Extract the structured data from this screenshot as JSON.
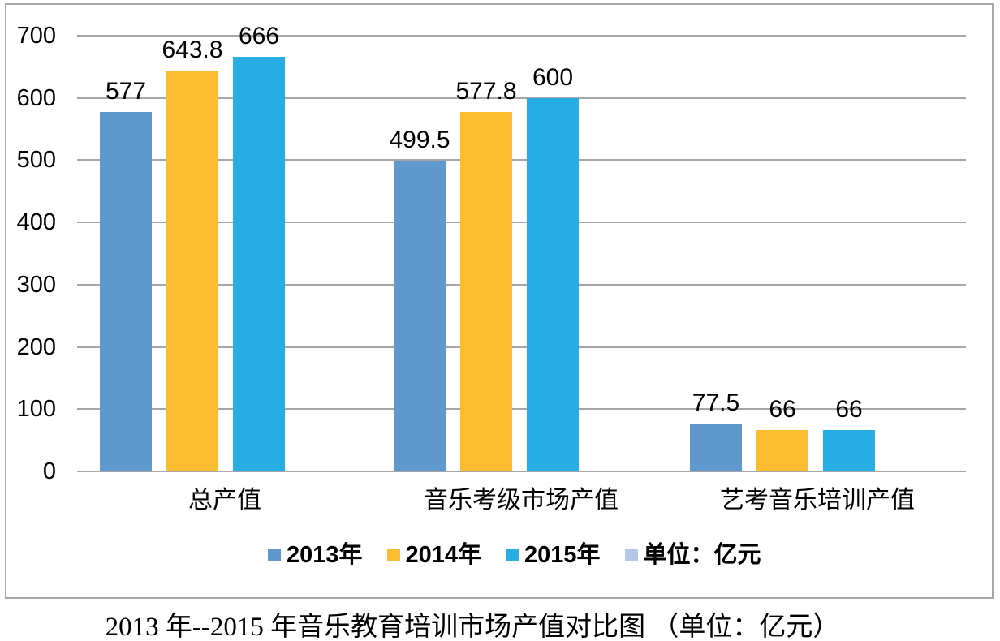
{
  "chart_data": {
    "type": "bar",
    "title": "2013 年--2015 年音乐教育培训市场产值对比图 （单位：亿元）",
    "categories": [
      "总产值",
      "音乐考级市场产值",
      "艺考音乐培训产值"
    ],
    "series": [
      {
        "name": "2013年",
        "color": "#6099CD",
        "values": [
          577,
          499.5,
          77.5
        ]
      },
      {
        "name": "2014年",
        "color": "#FBBC2F",
        "values": [
          643.8,
          577.8,
          66
        ]
      },
      {
        "name": "2015年",
        "color": "#27ACE3",
        "values": [
          666,
          600,
          66
        ]
      }
    ],
    "legend": [
      {
        "label": "2013年",
        "color": "#6099CD"
      },
      {
        "label": "2014年",
        "color": "#FBBC2F"
      },
      {
        "label": "2015年",
        "color": "#27ACE3"
      },
      {
        "label": "单位：亿元",
        "color": "#B4C7E7"
      }
    ],
    "y_ticks": [
      0,
      100,
      200,
      300,
      400,
      500,
      600,
      700
    ],
    "ylim": [
      0,
      700
    ],
    "grid": true,
    "legend_position": "bottom",
    "value_labels": true
  },
  "frame": {
    "border_color": "#A6A6A6",
    "gridline_color": "#A6A6A6",
    "text_color": "#000000",
    "background": "#FFFFFF"
  }
}
